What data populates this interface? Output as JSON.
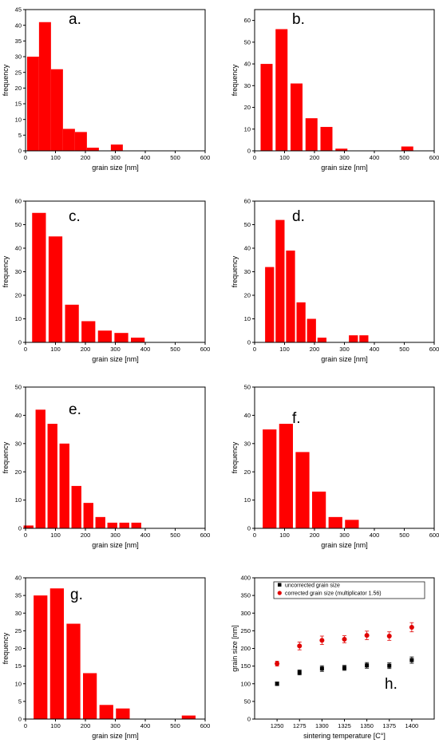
{
  "colors": {
    "bar": "#ff0000",
    "axis": "#000000",
    "uncorrected": "#000000",
    "corrected": "#e00000"
  },
  "chart_data": [
    {
      "type": "bar",
      "panel_label": "a.",
      "xlabel": "grain size [nm]",
      "ylabel": "frequency",
      "xlim": [
        0,
        600
      ],
      "ylim": [
        0,
        45
      ],
      "xticks": [
        0,
        100,
        200,
        300,
        400,
        500,
        600
      ],
      "yticks": [
        0,
        5,
        10,
        15,
        20,
        25,
        30,
        35,
        40,
        45
      ],
      "bar_width": 40,
      "x": [
        25,
        65,
        105,
        145,
        185,
        225,
        305
      ],
      "values": [
        30,
        41,
        26,
        7,
        6,
        1,
        2
      ]
    },
    {
      "type": "bar",
      "panel_label": "b.",
      "xlabel": "grain size [nm]",
      "ylabel": "frequency",
      "xlim": [
        0,
        600
      ],
      "ylim": [
        0,
        65
      ],
      "xticks": [
        0,
        100,
        200,
        300,
        400,
        500,
        600
      ],
      "yticks": [
        0,
        10,
        20,
        30,
        40,
        50,
        60
      ],
      "bar_width": 40,
      "x": [
        40,
        90,
        140,
        190,
        240,
        290,
        510
      ],
      "values": [
        40,
        56,
        31,
        15,
        11,
        1,
        2
      ]
    },
    {
      "type": "bar",
      "panel_label": "c.",
      "xlabel": "grain size [nm]",
      "ylabel": "frequency",
      "xlim": [
        0,
        600
      ],
      "ylim": [
        0,
        60
      ],
      "xticks": [
        0,
        100,
        200,
        300,
        400,
        500,
        600
      ],
      "yticks": [
        0,
        10,
        20,
        30,
        40,
        50,
        60
      ],
      "bar_width": 46,
      "x": [
        45,
        100,
        155,
        210,
        265,
        320,
        375
      ],
      "values": [
        55,
        45,
        16,
        9,
        5,
        4,
        2
      ]
    },
    {
      "type": "bar",
      "panel_label": "d.",
      "xlabel": "grain size [nm]",
      "ylabel": "frequency",
      "xlim": [
        0,
        600
      ],
      "ylim": [
        0,
        60
      ],
      "xticks": [
        0,
        100,
        200,
        300,
        400,
        500,
        600
      ],
      "yticks": [
        0,
        10,
        20,
        30,
        40,
        50,
        60
      ],
      "bar_width": 30,
      "x": [
        50,
        85,
        120,
        155,
        190,
        225,
        260,
        330,
        365
      ],
      "values": [
        32,
        52,
        39,
        17,
        10,
        2,
        0,
        3,
        3
      ]
    },
    {
      "type": "bar",
      "panel_label": "e.",
      "xlabel": "grain size [nm]",
      "ylabel": "frequency",
      "xlim": [
        0,
        600
      ],
      "ylim": [
        0,
        50
      ],
      "xticks": [
        0,
        100,
        200,
        300,
        400,
        500,
        600
      ],
      "yticks": [
        0,
        10,
        20,
        30,
        40,
        50
      ],
      "bar_width": 33,
      "x": [
        10,
        50,
        90,
        130,
        170,
        210,
        250,
        290,
        330,
        370
      ],
      "values": [
        1,
        42,
        37,
        30,
        15,
        9,
        4,
        2,
        2,
        2
      ]
    },
    {
      "type": "bar",
      "panel_label": "f.",
      "xlabel": "grain size [nm]",
      "ylabel": "frequency",
      "xlim": [
        0,
        600
      ],
      "ylim": [
        0,
        50
      ],
      "xticks": [
        0,
        100,
        200,
        300,
        400,
        500,
        600
      ],
      "yticks": [
        0,
        10,
        20,
        30,
        40,
        50
      ],
      "bar_width": 46,
      "x": [
        50,
        105,
        160,
        215,
        270,
        325
      ],
      "values": [
        35,
        37,
        27,
        13,
        4,
        3
      ]
    },
    {
      "type": "bar",
      "panel_label": "g.",
      "xlabel": "grain size [nm]",
      "ylabel": "frequency",
      "xlim": [
        0,
        600
      ],
      "ylim": [
        0,
        40
      ],
      "xticks": [
        0,
        100,
        200,
        300,
        400,
        500,
        600
      ],
      "yticks": [
        0,
        5,
        10,
        15,
        20,
        25,
        30,
        35,
        40
      ],
      "bar_width": 46,
      "x": [
        50,
        105,
        160,
        215,
        270,
        325,
        545
      ],
      "values": [
        35,
        37,
        27,
        13,
        4,
        3,
        1
      ]
    },
    {
      "type": "scatter",
      "panel_label": "h.",
      "xlabel": "sintering temperature [C°]",
      "ylabel": "grain size [nm]",
      "xlim": [
        1225,
        1425
      ],
      "ylim": [
        0,
        400
      ],
      "xticks": [
        1250,
        1275,
        1300,
        1325,
        1350,
        1375,
        1400
      ],
      "yticks": [
        0,
        50,
        100,
        150,
        200,
        250,
        300,
        350,
        400
      ],
      "legend_position": "top",
      "series": [
        {
          "name": "uncorrected grain size",
          "marker": "square",
          "x": [
            1250,
            1275,
            1300,
            1325,
            1350,
            1375,
            1400
          ],
          "y": [
            100,
            132,
            143,
            145,
            152,
            151,
            167
          ],
          "err": [
            5,
            7,
            8,
            7,
            8,
            8,
            9
          ]
        },
        {
          "name": "corrected grain size (multiplicator 1.56)",
          "marker": "circle",
          "x": [
            1250,
            1275,
            1300,
            1325,
            1350,
            1375,
            1400
          ],
          "y": [
            157,
            207,
            223,
            226,
            237,
            235,
            260
          ],
          "err": [
            7,
            11,
            12,
            10,
            12,
            12,
            13
          ]
        }
      ]
    }
  ]
}
